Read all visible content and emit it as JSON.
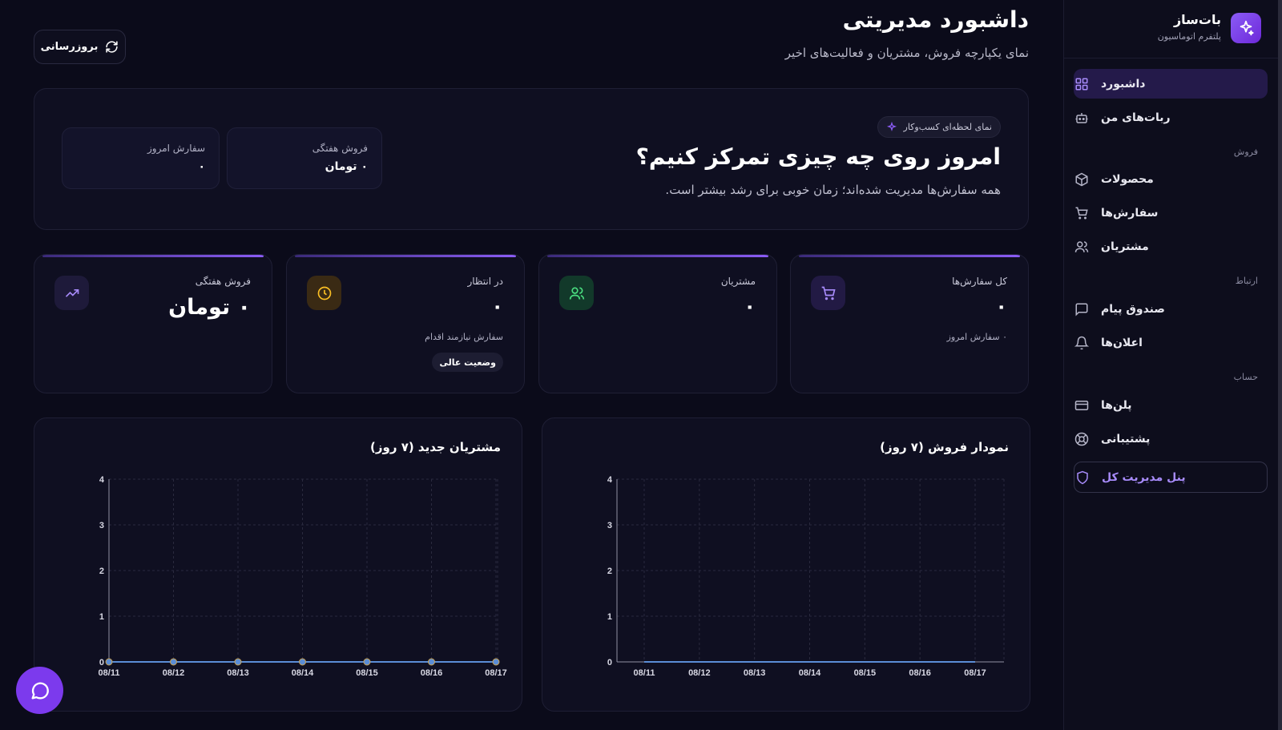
{
  "brand": {
    "name": "بات‌ساز",
    "subtitle": "پلتفرم اتوماسیون"
  },
  "nav": {
    "dashboard": "داشبورد",
    "my_bots": "ربات‌های من",
    "section_sales": "فروش",
    "products": "محصولات",
    "orders": "سفارش‌ها",
    "customers": "مشتریان",
    "section_comm": "ارتباط",
    "inbox": "صندوق پیام",
    "notifications": "اعلان‌ها",
    "section_account": "حساب",
    "plans": "پلن‌ها",
    "support": "پشتیبانی",
    "admin": "پنل مدیریت کل"
  },
  "header": {
    "title": "داشبورد مدیریتی",
    "subtitle": "نمای یکپارچه فروش، مشتریان و فعالیت‌های اخیر",
    "refresh": "بروزرسانی"
  },
  "hero": {
    "badge": "نمای لحظه‌ای کسب‌وکار",
    "title": "امروز روی چه چیزی تمرکز کنیم؟",
    "text": "همه سفارش‌ها مدیریت شده‌اند؛ زمان خوبی برای رشد بیشتر است.",
    "weekly_sales_label": "فروش هفتگی",
    "weekly_sales_value": "۰ تومان",
    "today_orders_label": "سفارش امروز",
    "today_orders_value": "۰"
  },
  "stats": {
    "total_orders": {
      "label": "کل سفارش‌ها",
      "value": "۰",
      "note": "۰ سفارش امروز"
    },
    "customers": {
      "label": "مشتریان",
      "value": "۰"
    },
    "pending": {
      "label": "در انتظار",
      "value": "۰",
      "note": "سفارش نیازمند اقدام",
      "badge": "وضعیت عالی"
    },
    "weekly_sales": {
      "label": "فروش هفتگی",
      "value": "۰ تومان"
    }
  },
  "colors": {
    "accent": "#8b5cf6",
    "bg": "#0b0b1a",
    "card": "#0f0f21",
    "point": "#5b8dd6"
  },
  "chart_data": [
    {
      "type": "line",
      "title": "نمودار فروش (۷ روز)",
      "x": [
        "08/11",
        "08/12",
        "08/13",
        "08/14",
        "08/15",
        "08/16",
        "08/17"
      ],
      "series": [
        {
          "values": [
            0,
            0,
            0,
            0,
            0,
            0,
            0
          ]
        }
      ],
      "ylim": [
        0,
        4
      ],
      "yticks": [
        "0",
        "1",
        "2",
        "3",
        "4"
      ],
      "grid": true,
      "show_points": false
    },
    {
      "type": "line",
      "title": "مشتریان جدید (۷ روز)",
      "x": [
        "08/11",
        "08/12",
        "08/13",
        "08/14",
        "08/15",
        "08/16",
        "08/17"
      ],
      "series": [
        {
          "values": [
            0,
            0,
            0,
            0,
            0,
            0,
            0
          ]
        }
      ],
      "ylim": [
        0,
        4
      ],
      "yticks": [
        "0",
        "1",
        "2",
        "3",
        "4"
      ],
      "grid": true,
      "show_points": true
    }
  ]
}
